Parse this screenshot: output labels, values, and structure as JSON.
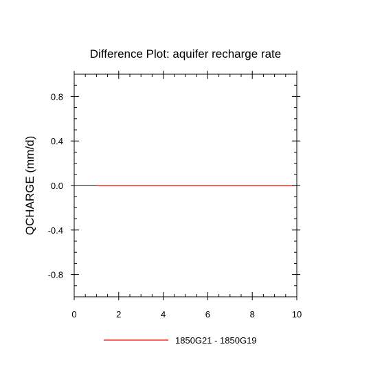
{
  "chart_data": {
    "type": "line",
    "title": "Difference Plot: aquifer recharge rate",
    "xlabel": "",
    "ylabel": "QCHARGE  (mm/d)",
    "xlim": [
      0,
      10
    ],
    "ylim": [
      -1,
      1
    ],
    "x_ticks": [
      "0",
      "2",
      "4",
      "6",
      "8",
      "10"
    ],
    "y_ticks": [
      "-0.8",
      "-0.4",
      "0.0",
      "0.4",
      "0.8"
    ],
    "grid": false,
    "legend_position": "bottom",
    "series": [
      {
        "name": "1850G21 - 1850G19",
        "color": "#ff0000",
        "x": [
          1,
          2,
          3,
          4,
          5,
          6,
          7,
          8,
          9,
          10
        ],
        "values": [
          0,
          0,
          0,
          0,
          0,
          0,
          0,
          0,
          0,
          0
        ]
      }
    ],
    "reference_line": {
      "y": 0,
      "color": "#000000"
    }
  }
}
